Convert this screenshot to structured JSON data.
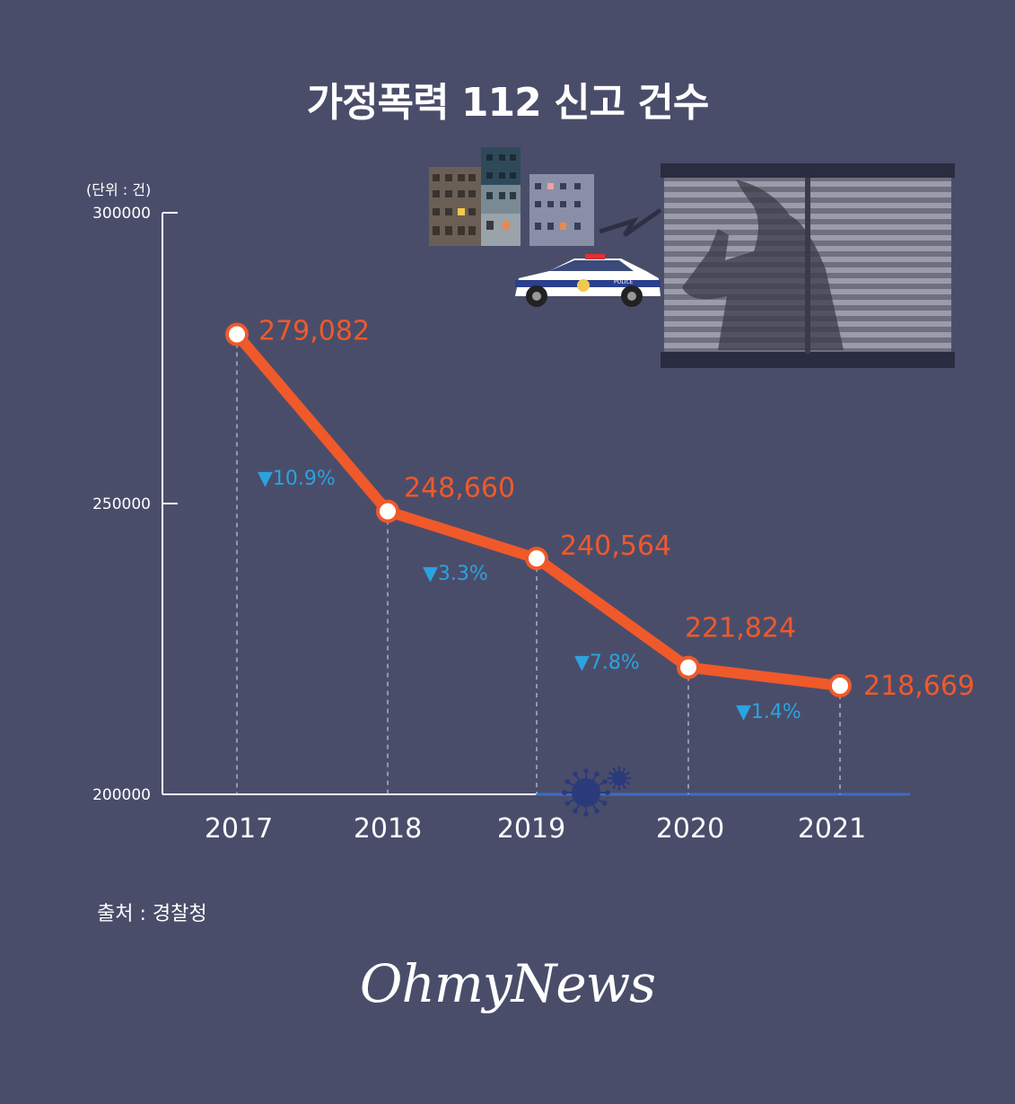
{
  "title": "가정폭력 112 신고 건수",
  "unit_label": "(단위 : 건)",
  "source": "출처 : 경찰청",
  "logo_text": "OhmyNews",
  "illustration": {
    "police_car_text": "POLICE",
    "icons": [
      "apartment-buildings-icon",
      "police-car-icon",
      "window-shadow-icon",
      "virus-icon"
    ]
  },
  "colors": {
    "background": "#4a4d6a",
    "line": "#f0592a",
    "change": "#2aa3e0",
    "axis": "#ffffff",
    "covid_line": "#3a6fc4"
  },
  "chart_data": {
    "type": "line",
    "title": "가정폭력 112 신고 건수",
    "xlabel": "",
    "ylabel": "(단위 : 건)",
    "categories": [
      "2017",
      "2018",
      "2019",
      "2020",
      "2021"
    ],
    "values": [
      279082,
      248660,
      240564,
      221824,
      218669
    ],
    "value_labels": [
      "279,082",
      "248,660",
      "240,564",
      "221,824",
      "218,669"
    ],
    "changes": [
      "▼10.9%",
      "▼3.3%",
      "▼7.8%",
      "▼1.4%"
    ],
    "y_ticks": [
      "300000",
      "250000",
      "200000"
    ],
    "ylim": [
      200000,
      300000
    ],
    "grid": false
  }
}
